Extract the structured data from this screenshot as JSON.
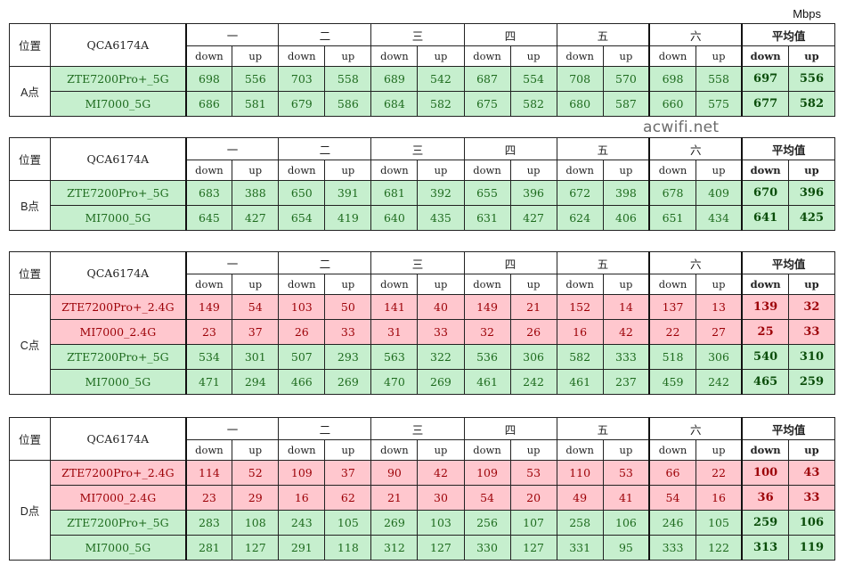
{
  "unit": "Mbps",
  "watermark": "acwifi.net",
  "rounds": [
    "一",
    "二",
    "三",
    "四",
    "五",
    "六"
  ],
  "avg_label": "平均值",
  "down_label": "down",
  "up_label": "up",
  "tables": [
    {
      "pos_header": "位置",
      "chip": "QCA6174A",
      "location": "A点",
      "rows": [
        {
          "device": "ZTE7200Pro+_5G",
          "band": "5G",
          "values": [
            698,
            556,
            703,
            558,
            689,
            542,
            687,
            554,
            708,
            570,
            698,
            558
          ],
          "avg": [
            697,
            556
          ]
        },
        {
          "device": "MI7000_5G",
          "band": "5G",
          "values": [
            686,
            581,
            679,
            586,
            684,
            582,
            675,
            582,
            680,
            587,
            660,
            575
          ],
          "avg": [
            677,
            582
          ]
        }
      ]
    },
    {
      "pos_header": "位置",
      "chip": "QCA6174A",
      "location": "B点",
      "rows": [
        {
          "device": "ZTE7200Pro+_5G",
          "band": "5G",
          "values": [
            683,
            388,
            650,
            391,
            681,
            392,
            655,
            396,
            672,
            398,
            678,
            409
          ],
          "avg": [
            670,
            396
          ]
        },
        {
          "device": "MI7000_5G",
          "band": "5G",
          "values": [
            645,
            427,
            654,
            419,
            640,
            435,
            631,
            427,
            624,
            406,
            651,
            434
          ],
          "avg": [
            641,
            425
          ]
        }
      ]
    },
    {
      "pos_header": "位置",
      "chip": "QCA6174A",
      "location": "C点",
      "rows": [
        {
          "device": "ZTE7200Pro+_2.4G",
          "band": "2.4G",
          "values": [
            149,
            54,
            103,
            50,
            141,
            40,
            149,
            21,
            152,
            14,
            137,
            13
          ],
          "avg": [
            139,
            32
          ]
        },
        {
          "device": "MI7000_2.4G",
          "band": "2.4G",
          "values": [
            23,
            37,
            26,
            33,
            31,
            33,
            32,
            26,
            16,
            42,
            22,
            27
          ],
          "avg": [
            25,
            33
          ]
        },
        {
          "device": "ZTE7200Pro+_5G",
          "band": "5G",
          "values": [
            534,
            301,
            507,
            293,
            563,
            322,
            536,
            306,
            582,
            333,
            518,
            306
          ],
          "avg": [
            540,
            310
          ]
        },
        {
          "device": "MI7000_5G",
          "band": "5G",
          "values": [
            471,
            294,
            466,
            269,
            470,
            269,
            461,
            242,
            461,
            237,
            459,
            242
          ],
          "avg": [
            465,
            259
          ]
        }
      ]
    },
    {
      "pos_header": "位置",
      "chip": "QCA6174A",
      "location": "D点",
      "rows": [
        {
          "device": "ZTE7200Pro+_2.4G",
          "band": "2.4G",
          "values": [
            114,
            52,
            109,
            37,
            90,
            42,
            109,
            53,
            110,
            53,
            66,
            22
          ],
          "avg": [
            100,
            43
          ]
        },
        {
          "device": "MI7000_2.4G",
          "band": "2.4G",
          "values": [
            23,
            29,
            16,
            62,
            21,
            30,
            54,
            20,
            49,
            41,
            54,
            16
          ],
          "avg": [
            36,
            33
          ]
        },
        {
          "device": "ZTE7200Pro+_5G",
          "band": "5G",
          "values": [
            283,
            108,
            243,
            105,
            269,
            103,
            256,
            107,
            258,
            106,
            246,
            105
          ],
          "avg": [
            259,
            106
          ]
        },
        {
          "device": "MI7000_5G",
          "band": "5G",
          "values": [
            281,
            127,
            291,
            118,
            312,
            127,
            330,
            127,
            331,
            95,
            333,
            122
          ],
          "avg": [
            313,
            119
          ]
        }
      ]
    }
  ]
}
